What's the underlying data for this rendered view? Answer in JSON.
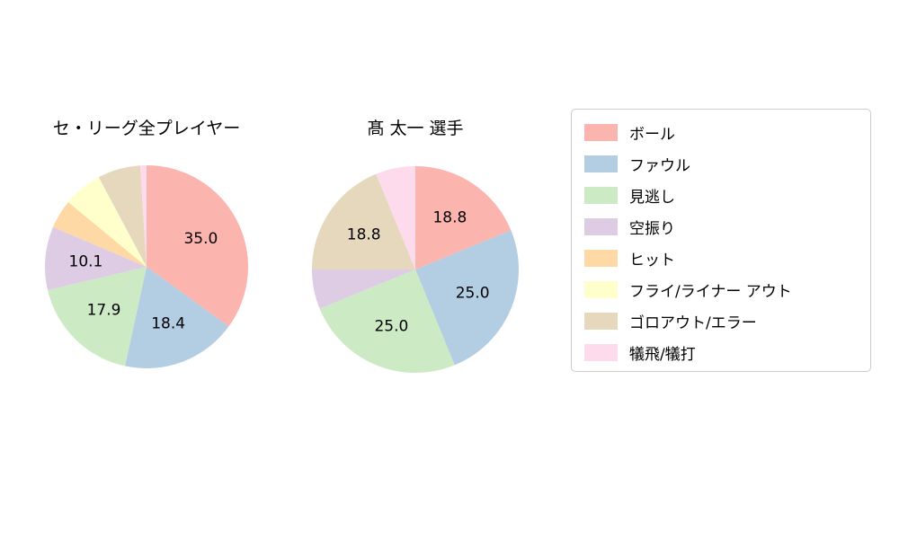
{
  "chart_data": [
    {
      "type": "pie",
      "title": "セ・リーグ全プレイヤー",
      "start_angle_deg": 90,
      "direction": "clockwise",
      "categories": [
        "ボール",
        "ファウル",
        "見逃し",
        "空振り",
        "ヒット",
        "フライ/ライナー アウト",
        "ゴロアウト/エラー",
        "犠飛/犠打"
      ],
      "values": [
        35.0,
        18.4,
        17.9,
        10.1,
        4.6,
        6.2,
        6.8,
        1.0
      ],
      "labels": [
        "35.0",
        "18.4",
        "17.9",
        "10.1",
        "",
        "",
        "",
        ""
      ],
      "colors": [
        "#fbb4ae",
        "#b3cde3",
        "#ccebc5",
        "#decbe4",
        "#fed9a6",
        "#ffffcc",
        "#e5d8bd",
        "#fddaec"
      ]
    },
    {
      "type": "pie",
      "title": "髙 太一  選手",
      "start_angle_deg": 90,
      "direction": "clockwise",
      "categories": [
        "ボール",
        "ファウル",
        "見逃し",
        "空振り",
        "ヒット",
        "フライ/ライナー アウト",
        "ゴロアウト/エラー",
        "犠飛/犠打"
      ],
      "values": [
        18.8,
        25.0,
        25.0,
        6.2,
        0,
        0,
        18.8,
        6.2
      ],
      "labels": [
        "18.8",
        "25.0",
        "25.0",
        "",
        "",
        "",
        "18.8",
        ""
      ],
      "colors": [
        "#fbb4ae",
        "#b3cde3",
        "#ccebc5",
        "#decbe4",
        "#fed9a6",
        "#ffffcc",
        "#e5d8bd",
        "#fddaec"
      ]
    }
  ],
  "legend": {
    "position": "right",
    "items": [
      {
        "label": "ボール",
        "color": "#fbb4ae"
      },
      {
        "label": "ファウル",
        "color": "#b3cde3"
      },
      {
        "label": "見逃し",
        "color": "#ccebc5"
      },
      {
        "label": "空振り",
        "color": "#decbe4"
      },
      {
        "label": "ヒット",
        "color": "#fed9a6"
      },
      {
        "label": "フライ/ライナー アウト",
        "color": "#ffffcc"
      },
      {
        "label": "ゴロアウト/エラー",
        "color": "#e5d8bd"
      },
      {
        "label": "犠飛/犠打",
        "color": "#fddaec"
      }
    ]
  }
}
